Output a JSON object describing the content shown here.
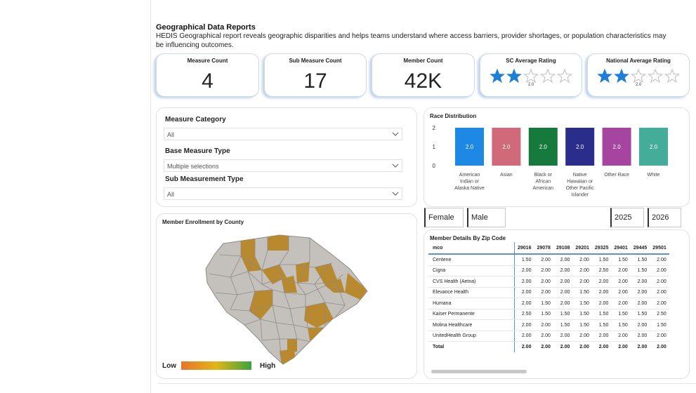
{
  "header": {
    "title": "Geographical Data Reports",
    "description": "HEDIS Geographical report reveals geographic disparities and helps teams understand where access barriers, provider shortages, or population characteristics may be influencing outcomes."
  },
  "kpis": [
    {
      "label": "Measure Count",
      "value": "4"
    },
    {
      "label": "Sub Measure Count",
      "value": "17"
    },
    {
      "label": "Member Count",
      "value": "42K"
    }
  ],
  "ratings": [
    {
      "label": "SC Average Rating",
      "value": "2.0",
      "stars": 2,
      "max": 5
    },
    {
      "label": "National Average Rating",
      "value": "2.0",
      "stars": 2,
      "max": 5
    }
  ],
  "filters": {
    "measure_category": {
      "label": "Measure Category",
      "value": "All"
    },
    "base_measure_type": {
      "label": "Base Measure Type",
      "value": "Multiple selections"
    },
    "sub_measurement_type": {
      "label": "Sub Measurement Type",
      "value": "All"
    }
  },
  "chart_data": {
    "type": "bar",
    "title": "Race Distribution",
    "categories": [
      "American Indian or Alaska Native",
      "Asian",
      "Black or African American",
      "Native Hawaiian or Other Pacific Islander",
      "Other Race",
      "White"
    ],
    "category_lines": [
      [
        "American",
        "Indian or",
        "Alaska Native"
      ],
      [
        "Asian"
      ],
      [
        "Black or",
        "African",
        "American"
      ],
      [
        "Native",
        "Hawaiian or",
        "Other Pacific",
        "Islander"
      ],
      [
        "Other Race"
      ],
      [
        "White"
      ]
    ],
    "values": [
      2.0,
      2.0,
      2.0,
      2.0,
      2.0,
      2.0
    ],
    "data_labels": [
      "2.0",
      "2.0",
      "2.0",
      "2.0",
      "2.0",
      "2.0"
    ],
    "colors": [
      "#1e88e5",
      "#d06a7a",
      "#157a3c",
      "#2b2d8a",
      "#a545a0",
      "#43ad9a"
    ],
    "yticks": [
      "2",
      "1",
      "0"
    ],
    "ylim": [
      0,
      2
    ]
  },
  "map": {
    "title": "Member Enrollment by County",
    "legend_low": "Low",
    "legend_high": "High",
    "fill_color": "#c4c0bc",
    "highlight_color": "#b8892e"
  },
  "slicers": {
    "gender": [
      "Female",
      "Male"
    ],
    "years": [
      "2025",
      "2026"
    ]
  },
  "member_details": {
    "title": "Member Details By Zip Code",
    "row_header": "mco",
    "columns": [
      "29016",
      "29078",
      "29108",
      "29201",
      "29325",
      "29401",
      "29445",
      "29501"
    ],
    "rows": [
      {
        "name": "Centene",
        "values": [
          "1.50",
          "2.00",
          "2.00",
          "2.00",
          "1.50",
          "1.50",
          "1.50",
          "2.00"
        ]
      },
      {
        "name": "Cigna",
        "values": [
          "2.00",
          "2.00",
          "2.00",
          "2.00",
          "2.50",
          "2.00",
          "1.50",
          "2.00"
        ]
      },
      {
        "name": "CVS Health (Aetna)",
        "values": [
          "2.00",
          "2.00",
          "2.00",
          "2.00",
          "2.00",
          "2.00",
          "2.00",
          "2.00"
        ]
      },
      {
        "name": "Elevance Health",
        "values": [
          "2.00",
          "2.00",
          "2.00",
          "1.50",
          "2.00",
          "2.00",
          "2.00",
          "2.00"
        ]
      },
      {
        "name": "Humana",
        "values": [
          "2.00",
          "1.50",
          "2.00",
          "1.50",
          "2.00",
          "2.00",
          "2.00",
          "2.00"
        ]
      },
      {
        "name": "Kaiser Permanente",
        "values": [
          "2.50",
          "1.50",
          "1.50",
          "1.50",
          "1.50",
          "1.50",
          "1.50",
          "2.50"
        ]
      },
      {
        "name": "Molina Healthcare",
        "values": [
          "2.00",
          "2.00",
          "1.50",
          "1.50",
          "1.50",
          "1.50",
          "2.00",
          "1.50"
        ]
      },
      {
        "name": "UnitedHealth Group",
        "values": [
          "2.00",
          "2.00",
          "2.00",
          "2.00",
          "2.00",
          "2.00",
          "2.00",
          "2.00"
        ]
      }
    ],
    "total": {
      "name": "Total",
      "values": [
        "2.00",
        "2.00",
        "2.00",
        "2.00",
        "2.00",
        "2.00",
        "2.00",
        "2.00"
      ]
    }
  }
}
